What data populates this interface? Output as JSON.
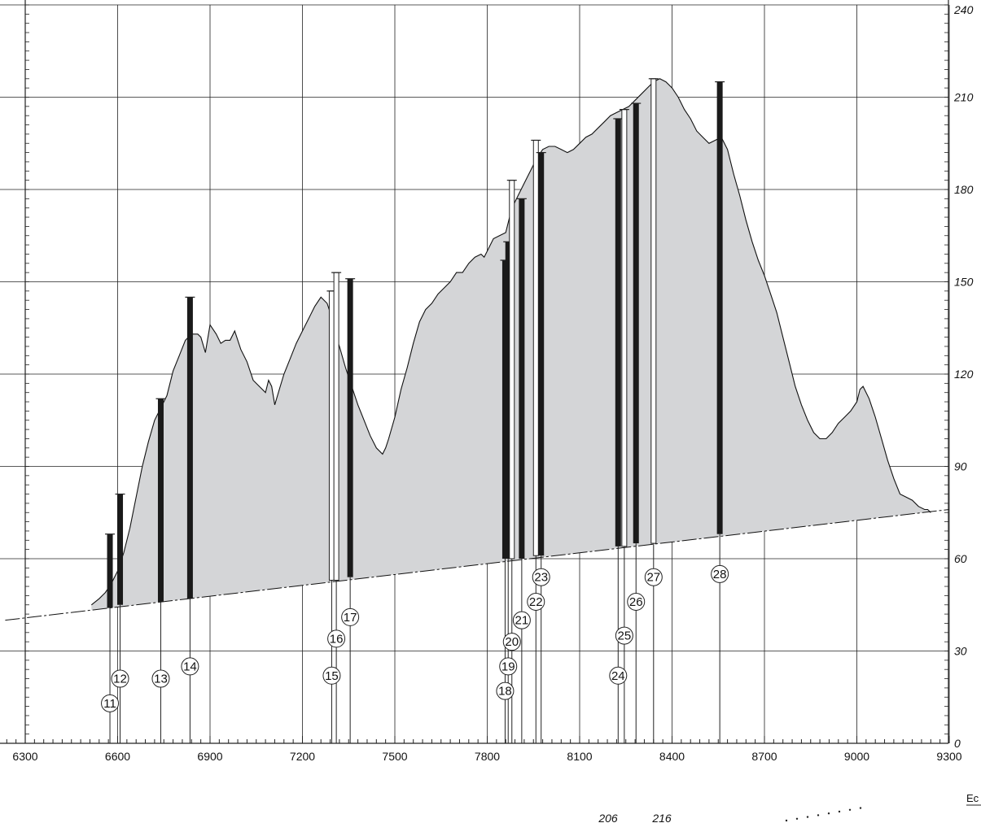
{
  "chart_data": {
    "type": "area",
    "title": "",
    "xlabel": "",
    "ylabel": "",
    "xlim": [
      6235,
      9300
    ],
    "ylim": [
      0,
      240
    ],
    "x_ticks": [
      6300,
      6600,
      6900,
      7200,
      7500,
      7800,
      8100,
      8400,
      8700,
      9000,
      9300
    ],
    "x_tick_labels": [
      "6300",
      "6600",
      "6900",
      "7200",
      "7500",
      "7800",
      "8100",
      "8400",
      "8700",
      "9000",
      "9300"
    ],
    "y_ticks": [
      0,
      30,
      60,
      90,
      120,
      150,
      180,
      210,
      240
    ],
    "y_tick_labels": [
      "0",
      "30",
      "60",
      "90",
      "120",
      "150",
      "180",
      "210",
      "240"
    ],
    "grid": true,
    "colors": {
      "terrain": "#d4d5d7",
      "bar": "#1a1a1a",
      "line": "#111111"
    },
    "terrain_profile": {
      "x": [
        6515,
        6540,
        6560,
        6580,
        6600,
        6620,
        6640,
        6660,
        6680,
        6700,
        6720,
        6740,
        6760,
        6780,
        6800,
        6820,
        6840,
        6860,
        6870,
        6885,
        6900,
        6920,
        6935,
        6950,
        6965,
        6980,
        7000,
        7020,
        7040,
        7060,
        7080,
        7090,
        7100,
        7110,
        7125,
        7140,
        7160,
        7180,
        7200,
        7220,
        7240,
        7260,
        7280,
        7290,
        7300,
        7320,
        7340,
        7360,
        7380,
        7400,
        7420,
        7440,
        7460,
        7470,
        7480,
        7500,
        7520,
        7540,
        7560,
        7580,
        7600,
        7620,
        7640,
        7660,
        7680,
        7700,
        7720,
        7740,
        7760,
        7780,
        7790,
        7800,
        7810,
        7820,
        7840,
        7860,
        7870,
        7880,
        7890,
        7900,
        7910,
        7920,
        7940,
        7960,
        7980,
        8000,
        8020,
        8040,
        8060,
        8080,
        8100,
        8120,
        8140,
        8160,
        8180,
        8200,
        8220,
        8240,
        8260,
        8280,
        8300,
        8320,
        8340,
        8360,
        8380,
        8400,
        8420,
        8440,
        8460,
        8480,
        8500,
        8520,
        8540,
        8560,
        8580,
        8600,
        8620,
        8640,
        8660,
        8680,
        8700,
        8720,
        8740,
        8760,
        8780,
        8800,
        8820,
        8840,
        8860,
        8880,
        8900,
        8920,
        8940,
        8960,
        8980,
        9000,
        9010,
        9020,
        9040,
        9060,
        9080,
        9100,
        9120,
        9140,
        9160,
        9180,
        9200,
        9220,
        9230,
        9240
      ],
      "y": [
        45,
        47,
        49,
        52,
        56,
        62,
        70,
        80,
        90,
        98,
        105,
        109,
        113,
        121,
        126,
        131,
        133,
        133,
        132,
        127,
        136,
        133,
        130,
        131,
        131,
        134,
        128,
        124,
        118,
        116,
        114,
        118,
        116,
        110,
        115,
        120,
        125,
        130,
        134,
        138,
        142,
        145,
        143,
        140,
        135,
        129,
        122,
        116,
        110,
        105,
        100,
        96,
        94,
        96,
        99,
        106,
        115,
        122,
        130,
        137,
        141,
        143,
        146,
        148,
        150,
        153,
        153,
        156,
        158,
        159,
        158,
        160,
        162,
        164,
        165,
        166,
        170,
        174,
        176,
        178,
        180,
        182,
        186,
        190,
        193,
        194,
        194,
        193,
        192,
        193,
        195,
        197,
        198,
        200,
        202,
        204,
        205,
        206,
        207,
        209,
        211,
        213,
        215,
        216,
        215,
        213,
        210,
        206,
        203,
        199,
        197,
        195,
        196,
        197,
        193,
        185,
        178,
        170,
        163,
        157,
        152,
        146,
        140,
        132,
        124,
        116,
        110,
        105,
        101,
        99,
        99,
        101,
        104,
        106,
        108,
        111,
        115,
        116,
        112,
        106,
        99,
        92,
        86,
        81,
        80,
        79,
        77,
        76,
        76,
        75
      ]
    },
    "baseline": {
      "x": [
        6235,
        9300
      ],
      "y": [
        40,
        76
      ]
    },
    "series": [
      {
        "label": "11",
        "x": 6575,
        "bottom": 44,
        "top": 68,
        "style": "solid"
      },
      {
        "label": "12",
        "x": 6608,
        "bottom": 45,
        "top": 81,
        "style": "solid"
      },
      {
        "label": "13",
        "x": 6740,
        "bottom": 46,
        "top": 112,
        "style": "solid"
      },
      {
        "label": "14",
        "x": 6835,
        "bottom": 47,
        "top": 145,
        "style": "solid"
      },
      {
        "label": "15",
        "x": 7295,
        "bottom": 53,
        "top": 147,
        "style": "open"
      },
      {
        "label": "16",
        "x": 7310,
        "bottom": 53,
        "top": 153,
        "style": "open"
      },
      {
        "label": "17",
        "x": 7355,
        "bottom": 54,
        "top": 151,
        "style": "solid"
      },
      {
        "label": "18",
        "x": 7858,
        "bottom": 60,
        "top": 157,
        "style": "solid"
      },
      {
        "label": "19",
        "x": 7868,
        "bottom": 60,
        "top": 163,
        "style": "solid"
      },
      {
        "label": "20",
        "x": 7880,
        "bottom": 60,
        "top": 183,
        "style": "open"
      },
      {
        "label": "21",
        "x": 7912,
        "bottom": 60,
        "top": 177,
        "style": "solid"
      },
      {
        "label": "22",
        "x": 7958,
        "bottom": 61,
        "top": 196,
        "style": "open"
      },
      {
        "label": "23",
        "x": 7975,
        "bottom": 61,
        "top": 192,
        "style": "solid"
      },
      {
        "label": "24",
        "x": 8225,
        "bottom": 64,
        "top": 203,
        "style": "solid"
      },
      {
        "label": "25",
        "x": 8245,
        "bottom": 64,
        "top": 206,
        "style": "open"
      },
      {
        "label": "26",
        "x": 8283,
        "bottom": 65,
        "top": 208,
        "style": "solid"
      },
      {
        "label": "27",
        "x": 8340,
        "bottom": 65,
        "top": 216,
        "style": "open"
      },
      {
        "label": "28",
        "x": 8555,
        "bottom": 68,
        "top": 215,
        "style": "solid"
      }
    ],
    "bottom_annotations": [
      "206",
      "216"
    ]
  },
  "corner_label": "Ec"
}
